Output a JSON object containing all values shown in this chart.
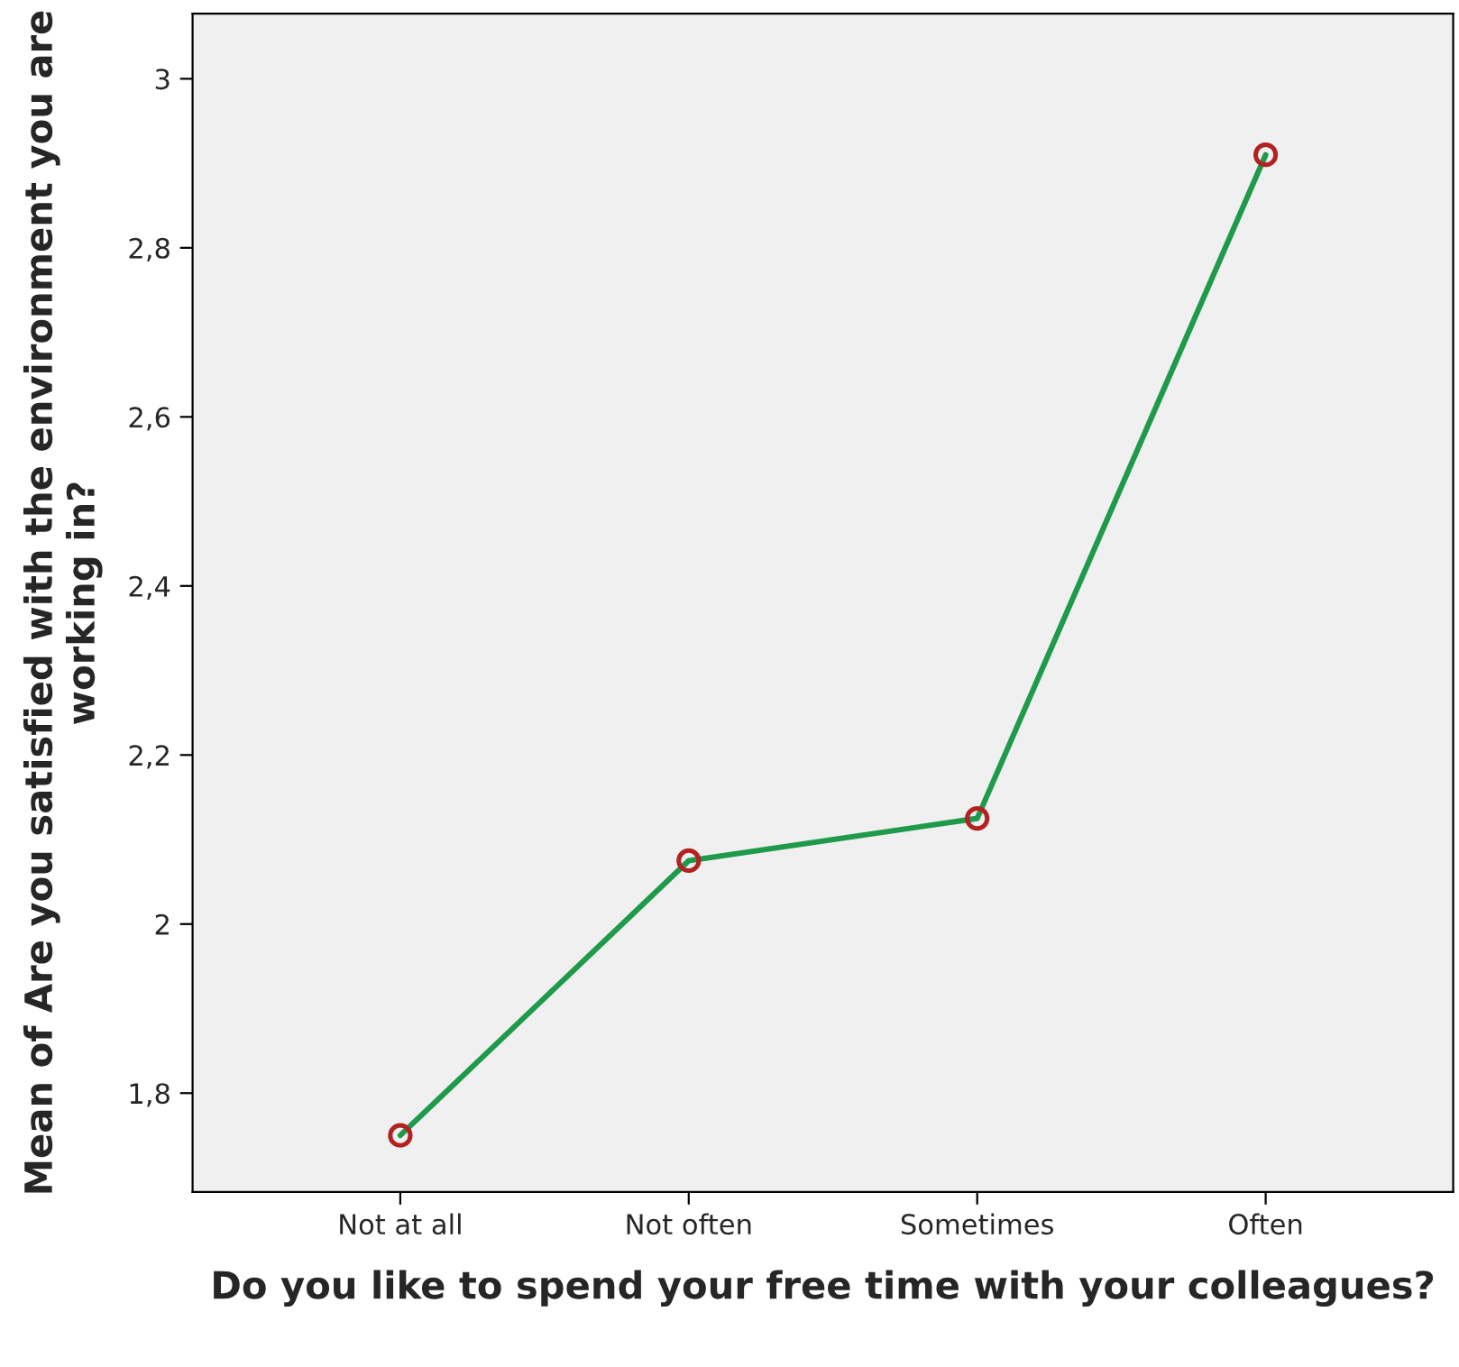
{
  "chart_data": {
    "type": "line",
    "xlabel": "Do you like to spend your free time with your colleagues?",
    "ylabel": "Mean of Are you satisfied with the environment you are working in?",
    "categories": [
      "Not at all",
      "Not often",
      "Sometimes",
      "Often"
    ],
    "series": [
      {
        "color": "#1f9a4a",
        "values": [
          1.75,
          2.075,
          2.125,
          2.91
        ]
      }
    ],
    "marker": "circle",
    "line_style": "solid",
    "grid": false,
    "legend": false,
    "ylim": [
      1.683,
      3.077
    ],
    "yticks": [
      {
        "value": 1.8,
        "label": "1,8"
      },
      {
        "value": 2,
        "label": "2"
      },
      {
        "value": 2.2,
        "label": "2,2"
      },
      {
        "value": 2.4,
        "label": "2,4"
      },
      {
        "value": 2.6,
        "label": "2,6"
      },
      {
        "value": 2.8,
        "label": "2,8"
      },
      {
        "value": 3,
        "label": "3"
      }
    ]
  }
}
